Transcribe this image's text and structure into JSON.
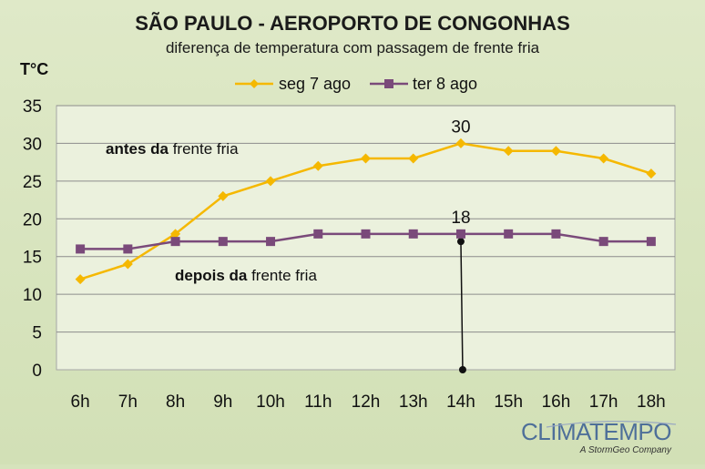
{
  "chart_data": {
    "type": "line",
    "title": "SÃO PAULO - AEROPORTO DE CONGONHAS",
    "subtitle": "diferença de temperatura com passagem de frente fria",
    "ylabel": "T°C",
    "xlabel": "",
    "categories": [
      "6h",
      "7h",
      "8h",
      "9h",
      "10h",
      "11h",
      "12h",
      "13h",
      "14h",
      "15h",
      "16h",
      "17h",
      "18h"
    ],
    "ylim": [
      0,
      35
    ],
    "yticks": [
      0,
      5,
      10,
      15,
      20,
      25,
      30,
      35
    ],
    "grid": true,
    "legend_position": "top",
    "series": [
      {
        "name": "seg 7 ago",
        "color": "#f5b800",
        "marker": "diamond",
        "values": [
          12,
          14,
          18,
          23,
          25,
          27,
          28,
          28,
          30,
          29,
          29,
          28,
          26
        ]
      },
      {
        "name": "ter 8 ago",
        "color": "#7a4a7a",
        "marker": "square",
        "values": [
          16,
          16,
          17,
          17,
          17,
          18,
          18,
          18,
          18,
          18,
          18,
          17,
          17
        ]
      }
    ],
    "data_labels": [
      {
        "series": 0,
        "index": 8,
        "text": "30"
      },
      {
        "series": 1,
        "index": 8,
        "text": "18"
      }
    ],
    "annotations": [
      {
        "bold": "antes da",
        "text": " frente fria"
      },
      {
        "bold": "depois da",
        "text": " frente fria"
      }
    ],
    "callout_line": {
      "category_index": 8,
      "from_value": 17,
      "to_value": 0,
      "color": "#111111"
    }
  },
  "branding": {
    "logo": "CLIMATEMPO",
    "tagline": "A StormGeo Company"
  }
}
